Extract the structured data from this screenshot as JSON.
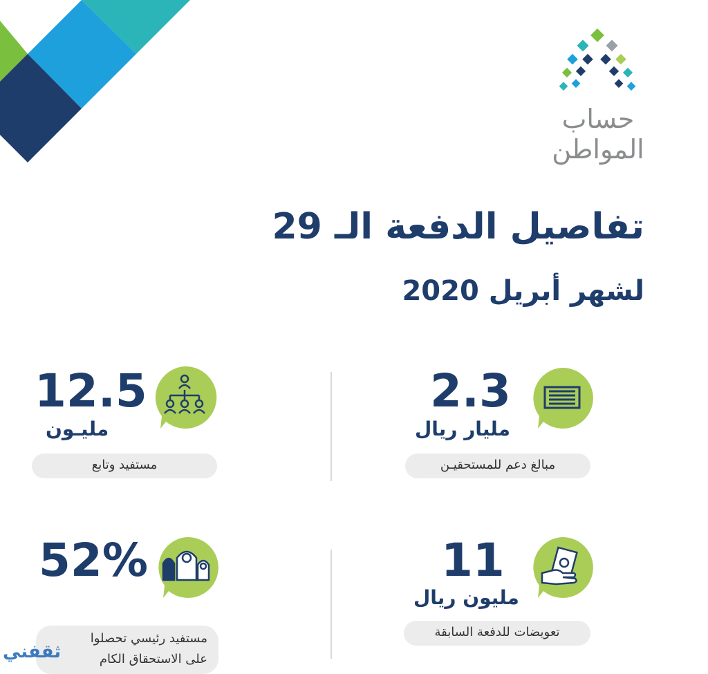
{
  "logo": {
    "name": "حساب المواطن"
  },
  "header": {
    "title": "تفاصيل الدفعة الـ 29",
    "subtitle": "لشهر أبريل 2020"
  },
  "stats": [
    {
      "value": "2.3",
      "unit": "مليار ريال",
      "label": "مبالغ دعم للمستحقيـن",
      "icon": "money-stack-icon"
    },
    {
      "value": "12.5",
      "unit": "مليـون",
      "label": "مستفيد وتابع",
      "icon": "org-chart-people-icon"
    },
    {
      "value": "11",
      "unit": "مليون ريال",
      "label": "تعويضات للدفعة السابقة",
      "icon": "hand-cash-icon"
    },
    {
      "value": "52%",
      "unit": "",
      "label_line1": "مستفيد رئيسي تحصلوا",
      "label_line2": "على الاستحقاق الكام",
      "icon": "family-people-icon"
    }
  ],
  "watermark": "ثقفني",
  "colors": {
    "navy": "#1f3d6b",
    "blue": "#1ea0dc",
    "teal": "#2bb5b8",
    "green": "#7bbf3f",
    "bubble": "#a9cd57",
    "gray": "#8a8c8e"
  }
}
